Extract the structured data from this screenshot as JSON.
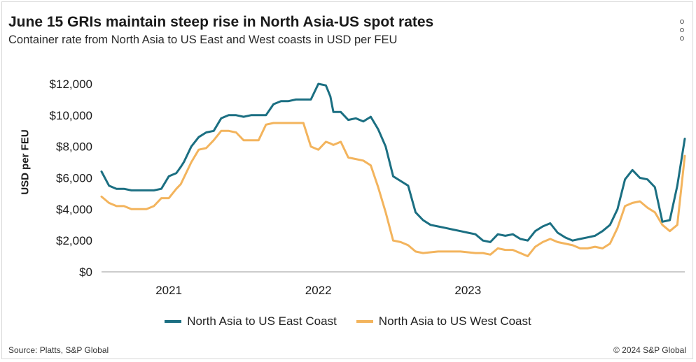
{
  "chart_data": {
    "type": "line",
    "title": "June 15 GRIs maintain steep rise in North Asia-US spot rates",
    "subtitle": "Container rate from North Asia to US East and West coasts in USD per FEU",
    "xlabel": "",
    "ylabel": "USD per FEU",
    "ylim": [
      0,
      12000
    ],
    "yticks": [
      "$0",
      "$2,000",
      "$4,000",
      "$6,000",
      "$8,000",
      "$10,000",
      "$12,000"
    ],
    "ytick_values": [
      0,
      2000,
      4000,
      6000,
      8000,
      10000,
      12000
    ],
    "xlim": [
      2020.55,
      2024.45
    ],
    "xticks": [
      "2021",
      "2022",
      "2023"
    ],
    "xtick_values": [
      2021.0,
      2022.0,
      2023.0
    ],
    "grid": "horizontal",
    "legend_position": "bottom",
    "series": [
      {
        "name": "North Asia to US East Coast",
        "color": "#1b6f82",
        "x": [
          2020.55,
          2020.6,
          2020.65,
          2020.7,
          2020.75,
          2020.8,
          2020.85,
          2020.9,
          2020.95,
          2021.0,
          2021.05,
          2021.08,
          2021.1,
          2021.15,
          2021.2,
          2021.25,
          2021.3,
          2021.35,
          2021.4,
          2021.45,
          2021.5,
          2021.55,
          2021.6,
          2021.65,
          2021.7,
          2021.75,
          2021.8,
          2021.85,
          2021.9,
          2021.95,
          2022.0,
          2022.05,
          2022.08,
          2022.1,
          2022.15,
          2022.2,
          2022.25,
          2022.3,
          2022.35,
          2022.4,
          2022.45,
          2022.5,
          2022.55,
          2022.6,
          2022.65,
          2022.7,
          2022.75,
          2022.8,
          2022.85,
          2022.9,
          2022.95,
          2023.0,
          2023.05,
          2023.1,
          2023.15,
          2023.2,
          2023.25,
          2023.3,
          2023.35,
          2023.4,
          2023.45,
          2023.5,
          2023.55,
          2023.6,
          2023.65,
          2023.7,
          2023.75,
          2023.8,
          2023.85,
          2023.9,
          2023.95,
          2024.0,
          2024.05,
          2024.1,
          2024.15,
          2024.2,
          2024.25,
          2024.3,
          2024.35,
          2024.4,
          2024.45
        ],
        "values": [
          6400,
          5500,
          5300,
          5300,
          5200,
          5200,
          5200,
          5200,
          5300,
          6100,
          6300,
          6700,
          7000,
          8000,
          8600,
          8900,
          9000,
          9800,
          10000,
          10000,
          9900,
          10000,
          10000,
          10000,
          10700,
          10900,
          10900,
          11000,
          11000,
          11000,
          12000,
          11900,
          11200,
          10200,
          10200,
          9700,
          9800,
          9600,
          9900,
          9100,
          8000,
          6100,
          5800,
          5500,
          3800,
          3300,
          3000,
          2900,
          2800,
          2700,
          2600,
          2500,
          2400,
          2000,
          1900,
          2400,
          2300,
          2400,
          2100,
          2000,
          2600,
          2900,
          3100,
          2500,
          2200,
          2000,
          2100,
          2200,
          2300,
          2600,
          3000,
          4000,
          5900,
          6500,
          6000,
          5900,
          5400,
          3200,
          3300,
          5500,
          8500
        ]
      },
      {
        "name": "North Asia to US West Coast",
        "color": "#f3b45d",
        "x": [
          2020.55,
          2020.6,
          2020.65,
          2020.7,
          2020.75,
          2020.8,
          2020.85,
          2020.9,
          2020.95,
          2021.0,
          2021.05,
          2021.08,
          2021.1,
          2021.15,
          2021.2,
          2021.25,
          2021.3,
          2021.35,
          2021.4,
          2021.45,
          2021.5,
          2021.55,
          2021.6,
          2021.65,
          2021.7,
          2021.75,
          2021.8,
          2021.85,
          2021.9,
          2021.95,
          2022.0,
          2022.05,
          2022.08,
          2022.1,
          2022.15,
          2022.2,
          2022.25,
          2022.3,
          2022.35,
          2022.4,
          2022.45,
          2022.5,
          2022.55,
          2022.6,
          2022.65,
          2022.7,
          2022.75,
          2022.8,
          2022.85,
          2022.9,
          2022.95,
          2023.0,
          2023.05,
          2023.1,
          2023.15,
          2023.2,
          2023.25,
          2023.3,
          2023.35,
          2023.4,
          2023.45,
          2023.5,
          2023.55,
          2023.6,
          2023.65,
          2023.7,
          2023.75,
          2023.8,
          2023.85,
          2023.9,
          2023.95,
          2024.0,
          2024.05,
          2024.1,
          2024.15,
          2024.2,
          2024.25,
          2024.3,
          2024.35,
          2024.4,
          2024.45
        ],
        "values": [
          4800,
          4400,
          4200,
          4200,
          4000,
          4000,
          4000,
          4200,
          4700,
          4700,
          5300,
          5600,
          6000,
          7000,
          7800,
          7900,
          8400,
          9000,
          9000,
          8900,
          8400,
          8400,
          8400,
          9400,
          9500,
          9500,
          9500,
          9500,
          9500,
          8000,
          7800,
          8300,
          8200,
          8100,
          8300,
          7300,
          7200,
          7100,
          6800,
          5400,
          3800,
          2000,
          1900,
          1700,
          1300,
          1200,
          1250,
          1300,
          1300,
          1300,
          1300,
          1250,
          1200,
          1200,
          1100,
          1500,
          1400,
          1400,
          1200,
          1000,
          1600,
          1900,
          2100,
          1900,
          1800,
          1700,
          1500,
          1500,
          1600,
          1500,
          1800,
          2800,
          4200,
          4400,
          4500,
          4100,
          3800,
          3000,
          2600,
          3000,
          7400
        ]
      }
    ]
  },
  "source": "Source: Platts, S&P Global",
  "copyright": "© 2024 S&P Global",
  "menu_icon": "more-vertical-icon"
}
